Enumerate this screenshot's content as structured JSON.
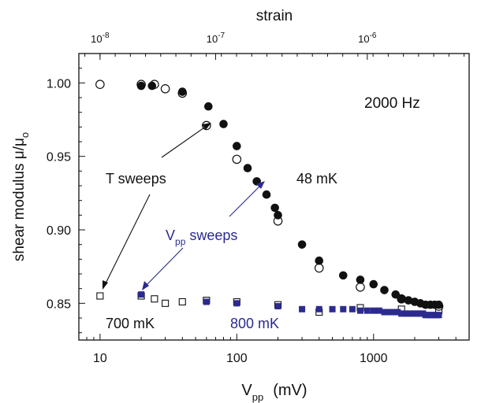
{
  "chart_data": {
    "type": "scatter",
    "title": "",
    "xlabel_main": "V",
    "xlabel_sub": "pp",
    "xlabel_unit": "(mV)",
    "ylabel_main": "shear modulus  μ/μ",
    "ylabel_sub": "o",
    "top_axis_label": "strain",
    "x_scale": "log",
    "xlim": [
      7,
      5000
    ],
    "ylim": [
      0.825,
      1.02
    ],
    "x_ticks": [
      10,
      100,
      1000
    ],
    "x_tick_labels": [
      "10",
      "100",
      "1000"
    ],
    "y_ticks": [
      0.85,
      0.9,
      0.95,
      1.0
    ],
    "y_tick_labels": [
      "0.85",
      "0.90",
      "0.95",
      "1.00"
    ],
    "top_ticks": [
      {
        "v": 10,
        "base": "10",
        "exp": "-8"
      },
      {
        "v": 70,
        "base": "10",
        "exp": "-7"
      },
      {
        "v": 900,
        "base": "10",
        "exp": "-6"
      }
    ],
    "grid": false,
    "annotations": {
      "freq": "2000 Hz",
      "t_sweeps": "T sweeps",
      "vpp_sweeps_main": "V",
      "vpp_sweeps_sub": "pp",
      "vpp_sweeps_rest": " sweeps",
      "mk48": "48 mK",
      "mk700": "700 mK",
      "mk800": "800 mK"
    },
    "colors": {
      "black": "#111111",
      "blue": "#2b2b8f"
    },
    "series": [
      {
        "marker": "filled-circle",
        "color": "black",
        "x": [
          20,
          24,
          40,
          62,
          80,
          100,
          120,
          140,
          165,
          190,
          200,
          300,
          400,
          600,
          800,
          1000,
          1200,
          1450,
          1600,
          1800,
          2000,
          2200,
          2400,
          2600,
          2800,
          3000
        ],
        "y": [
          0.998,
          0.998,
          0.994,
          0.984,
          0.972,
          0.957,
          0.942,
          0.933,
          0.924,
          0.915,
          0.91,
          0.89,
          0.879,
          0.869,
          0.866,
          0.863,
          0.859,
          0.856,
          0.853,
          0.852,
          0.851,
          0.85,
          0.849,
          0.849,
          0.849,
          0.849
        ]
      },
      {
        "marker": "open-circle",
        "color": "black",
        "x": [
          10,
          20,
          25,
          30,
          40,
          60,
          100,
          200,
          400,
          800,
          1600,
          3000
        ],
        "y": [
          0.999,
          0.999,
          0.999,
          0.996,
          0.993,
          0.971,
          0.948,
          0.906,
          0.874,
          0.861,
          0.853,
          0.848
        ]
      },
      {
        "marker": "filled-square",
        "color": "blue",
        "x": [
          20,
          60,
          100,
          200,
          300,
          400,
          500,
          600,
          700,
          800,
          900,
          1000,
          1100,
          1200,
          1300,
          1400,
          1500,
          1600,
          1700,
          1800,
          1900,
          2000,
          2100,
          2200,
          2300,
          2400,
          2500,
          2600,
          2700,
          2800,
          2900,
          3000
        ],
        "y": [
          0.856,
          0.851,
          0.85,
          0.848,
          0.846,
          0.846,
          0.846,
          0.846,
          0.846,
          0.845,
          0.845,
          0.845,
          0.845,
          0.844,
          0.844,
          0.844,
          0.844,
          0.843,
          0.843,
          0.843,
          0.843,
          0.843,
          0.843,
          0.843,
          0.843,
          0.842,
          0.842,
          0.842,
          0.842,
          0.842,
          0.842,
          0.842
        ]
      },
      {
        "marker": "open-square",
        "color": "black",
        "x": [
          10,
          20,
          25,
          30,
          40,
          60,
          100,
          200,
          400,
          800,
          1600,
          3000
        ],
        "y": [
          0.855,
          0.855,
          0.853,
          0.85,
          0.851,
          0.852,
          0.851,
          0.849,
          0.844,
          0.847,
          0.846,
          0.845
        ]
      }
    ]
  }
}
